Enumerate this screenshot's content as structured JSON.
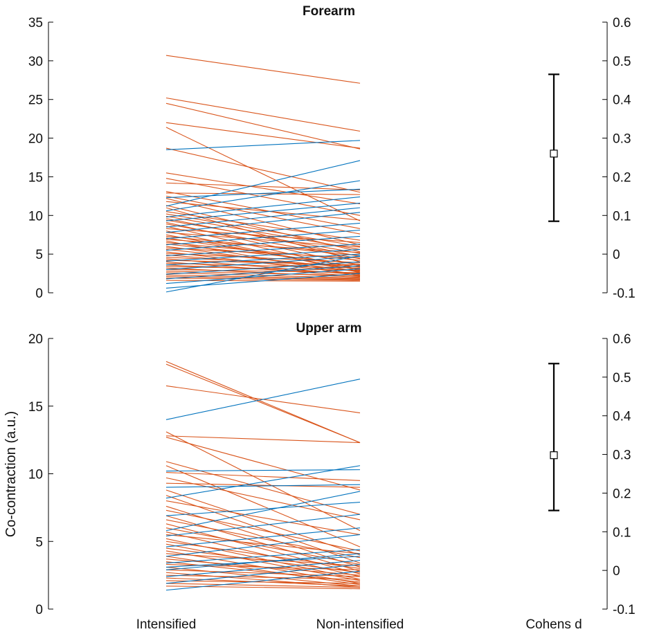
{
  "chart_data": [
    {
      "type": "line",
      "title": "Forearm",
      "ylabel": "",
      "categories": [
        "Intensified",
        "Non-intensified",
        "Cohens d"
      ],
      "ylim": [
        0,
        35
      ],
      "yticks": [
        0,
        5,
        10,
        15,
        20,
        25,
        30,
        35
      ],
      "y2lim": [
        -0.1,
        0.6
      ],
      "y2ticks": [
        "-0.1",
        "0",
        "0.1",
        "0.2",
        "0.3",
        "0.4",
        "0.5",
        "0.6"
      ],
      "colors": {
        "decrease": "#d95319",
        "increase": "#0072bd"
      },
      "pairs_decrease": [
        [
          30.7,
          27.1
        ],
        [
          25.2,
          20.9
        ],
        [
          24.5,
          18.6
        ],
        [
          22.0,
          18.7
        ],
        [
          21.4,
          9.3
        ],
        [
          18.7,
          13.0
        ],
        [
          15.5,
          11.5
        ],
        [
          14.8,
          10.0
        ],
        [
          14.2,
          13.3
        ],
        [
          13.1,
          8.3
        ],
        [
          12.9,
          12.7
        ],
        [
          12.5,
          7.6
        ],
        [
          12.2,
          6.2
        ],
        [
          11.8,
          9.4
        ],
        [
          11.3,
          5.3
        ],
        [
          11.0,
          4.0
        ],
        [
          10.5,
          6.8
        ],
        [
          10.2,
          6.0
        ],
        [
          9.9,
          5.6
        ],
        [
          9.6,
          4.7
        ],
        [
          9.4,
          5.1
        ],
        [
          9.1,
          3.5
        ],
        [
          8.9,
          4.4
        ],
        [
          8.6,
          3.0
        ],
        [
          8.3,
          6.5
        ],
        [
          8.0,
          2.6
        ],
        [
          7.8,
          5.9
        ],
        [
          7.5,
          2.9
        ],
        [
          7.3,
          4.8
        ],
        [
          7.1,
          3.3
        ],
        [
          6.9,
          5.2
        ],
        [
          6.7,
          2.2
        ],
        [
          6.5,
          4.2
        ],
        [
          6.3,
          3.7
        ],
        [
          6.0,
          2.7
        ],
        [
          5.8,
          4.5
        ],
        [
          5.6,
          3.1
        ],
        [
          5.3,
          2.4
        ],
        [
          5.1,
          3.9
        ],
        [
          4.9,
          2.8
        ],
        [
          4.6,
          3.4
        ],
        [
          4.4,
          2.3
        ],
        [
          4.2,
          3.6
        ],
        [
          4.0,
          2.1
        ],
        [
          3.8,
          3.2
        ],
        [
          3.6,
          2.5
        ],
        [
          3.4,
          2.9
        ],
        [
          3.2,
          2.0
        ],
        [
          3.0,
          2.6
        ],
        [
          2.8,
          2.2
        ],
        [
          2.6,
          1.9
        ],
        [
          2.3,
          1.8
        ],
        [
          2.1,
          1.7
        ],
        [
          1.9,
          1.6
        ],
        [
          1.6,
          1.5
        ]
      ],
      "pairs_increase": [
        [
          18.5,
          19.7
        ],
        [
          11.2,
          17.1
        ],
        [
          10.6,
          14.5
        ],
        [
          9.8,
          12.4
        ],
        [
          9.3,
          11.6
        ],
        [
          8.5,
          11.0
        ],
        [
          7.8,
          10.4
        ],
        [
          7.0,
          9.0
        ],
        [
          6.2,
          8.1
        ],
        [
          5.5,
          7.3
        ],
        [
          4.8,
          6.3
        ],
        [
          4.1,
          5.6
        ],
        [
          3.6,
          5.0
        ],
        [
          3.0,
          4.7
        ],
        [
          2.4,
          4.0
        ],
        [
          1.8,
          3.5
        ],
        [
          1.2,
          3.1
        ],
        [
          0.6,
          2.5
        ],
        [
          0.1,
          4.8
        ],
        [
          12.3,
          13.4
        ]
      ],
      "effect": {
        "label": "Cohens d",
        "value": 0.26,
        "lower": 0.085,
        "upper": 0.465
      }
    },
    {
      "type": "line",
      "title": "Upper arm",
      "ylabel": "Co-contraction (a.u.)",
      "categories": [
        "Intensified",
        "Non-intensified",
        "Cohens d"
      ],
      "ylim": [
        0,
        20
      ],
      "yticks": [
        0,
        5,
        10,
        15,
        20
      ],
      "y2lim": [
        -0.1,
        0.6
      ],
      "y2ticks": [
        "-0.1",
        "0",
        "0.1",
        "0.2",
        "0.3",
        "0.4",
        "0.5",
        "0.6"
      ],
      "colors": {
        "decrease": "#d95319",
        "increase": "#0072bd"
      },
      "pairs_decrease": [
        [
          18.3,
          12.3
        ],
        [
          18.1,
          12.3
        ],
        [
          16.5,
          14.5
        ],
        [
          13.1,
          5.8
        ],
        [
          12.7,
          8.8
        ],
        [
          12.8,
          12.3
        ],
        [
          10.9,
          7.0
        ],
        [
          10.6,
          4.6
        ],
        [
          10.1,
          9.5
        ],
        [
          9.7,
          6.6
        ],
        [
          9.3,
          9.0
        ],
        [
          8.8,
          4.0
        ],
        [
          8.4,
          3.4
        ],
        [
          8.0,
          5.5
        ],
        [
          7.6,
          3.1
        ],
        [
          7.3,
          4.3
        ],
        [
          6.9,
          2.8
        ],
        [
          6.6,
          3.8
        ],
        [
          6.3,
          2.6
        ],
        [
          6.0,
          3.3
        ],
        [
          5.7,
          2.4
        ],
        [
          5.5,
          4.1
        ],
        [
          5.2,
          2.2
        ],
        [
          5.0,
          3.0
        ],
        [
          4.8,
          2.1
        ],
        [
          4.5,
          2.7
        ],
        [
          4.3,
          1.9
        ],
        [
          4.1,
          3.2
        ],
        [
          3.9,
          1.8
        ],
        [
          3.7,
          2.5
        ],
        [
          3.5,
          2.0
        ],
        [
          3.3,
          2.9
        ],
        [
          3.1,
          1.7
        ],
        [
          2.9,
          2.4
        ],
        [
          2.7,
          1.6
        ],
        [
          2.5,
          2.2
        ],
        [
          2.3,
          1.7
        ],
        [
          2.1,
          1.9
        ],
        [
          1.9,
          1.6
        ],
        [
          1.7,
          1.5
        ]
      ],
      "pairs_increase": [
        [
          14.0,
          17.0
        ],
        [
          10.2,
          10.3
        ],
        [
          8.2,
          10.6
        ],
        [
          9.0,
          9.2
        ],
        [
          6.9,
          7.9
        ],
        [
          5.8,
          8.7
        ],
        [
          5.4,
          7.0
        ],
        [
          4.6,
          6.0
        ],
        [
          3.9,
          5.5
        ],
        [
          3.4,
          4.4
        ],
        [
          2.9,
          4.1
        ],
        [
          2.4,
          3.6
        ],
        [
          1.9,
          3.3
        ],
        [
          1.4,
          2.8
        ],
        [
          3.1,
          3.9
        ]
      ],
      "effect": {
        "label": "Cohens d",
        "value": 0.298,
        "lower": 0.155,
        "upper": 0.535
      }
    }
  ]
}
